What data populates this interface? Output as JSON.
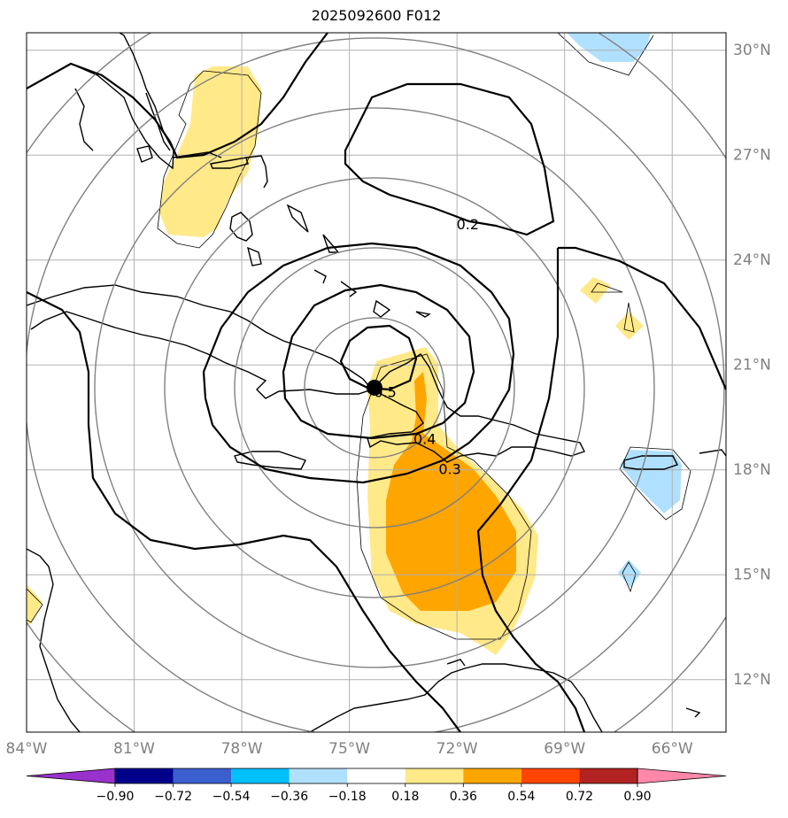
{
  "title": "2025092600 F012",
  "map": {
    "lon_range": [
      -84,
      -64.5
    ],
    "lat_range": [
      10.5,
      30.5
    ],
    "lon_ticks": [
      {
        "value": -84,
        "label": "84°W"
      },
      {
        "value": -81,
        "label": "81°W"
      },
      {
        "value": -78,
        "label": "78°W"
      },
      {
        "value": -75,
        "label": "75°W"
      },
      {
        "value": -72,
        "label": "72°W"
      },
      {
        "value": -69,
        "label": "69°W"
      },
      {
        "value": -66,
        "label": "66°W"
      }
    ],
    "lat_ticks": [
      {
        "value": 12,
        "label": "12°N"
      },
      {
        "value": 15,
        "label": "15°N"
      },
      {
        "value": 18,
        "label": "18°N"
      },
      {
        "value": 21,
        "label": "21°N"
      },
      {
        "value": 24,
        "label": "24°N"
      },
      {
        "value": 27,
        "label": "27°N"
      },
      {
        "value": 30,
        "label": "30°N"
      }
    ],
    "gridlines": true,
    "storm_center": {
      "lon": -74.3,
      "lat": 20.35
    },
    "range_rings_deg": [
      2,
      4,
      6,
      8,
      10,
      12
    ],
    "contour_labels": [
      {
        "text": "0.2",
        "lon": -71.7,
        "lat": 25.0
      },
      {
        "text": "0.5",
        "lon": -74.0,
        "lat": 20.2
      },
      {
        "text": "0.4",
        "lon": -72.9,
        "lat": 18.85
      },
      {
        "text": "0.3",
        "lon": -72.2,
        "lat": 18.0
      }
    ],
    "colors": {
      "yellow": "#ffe989",
      "orange": "#ffa500",
      "lightblue": "#b0e0ff",
      "grid": "#b0b0b0",
      "ring": "#808080",
      "coast": "#000000"
    }
  },
  "colorbar": {
    "colors": [
      "#9932cc",
      "#00008b",
      "#3c5fd0",
      "#00bfff",
      "#b0e0ff",
      "#ffffff",
      "#ffe989",
      "#ffa500",
      "#ff4500",
      "#b22222",
      "#ff88aa"
    ],
    "tick_labels": [
      "−0.90",
      "−0.72",
      "−0.54",
      "−0.36",
      "−0.18",
      "0.18",
      "0.36",
      "0.54",
      "0.72",
      "0.90"
    ]
  }
}
